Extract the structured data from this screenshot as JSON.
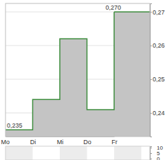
{
  "chart_data": [
    {
      "type": "line",
      "categories": [
        "Mo",
        "Di",
        "Mi",
        "Do",
        "Fr"
      ],
      "values": [
        0.235,
        0.244,
        0.262,
        0.241,
        0.27
      ],
      "color": "#3c8c3c",
      "line_style": "step",
      "ylim": [
        0.233,
        0.2725
      ],
      "yticks": [
        {
          "value": 0.24,
          "label": "0,24"
        },
        {
          "value": 0.25,
          "label": "0,25"
        },
        {
          "value": 0.26,
          "label": "0,26"
        },
        {
          "value": 0.27,
          "label": "0,27"
        }
      ],
      "grid": true,
      "annotations": [
        {
          "text": "0,235",
          "x": "Mo",
          "y": 0.235
        },
        {
          "text": "0,270",
          "x": "Fr",
          "y": 0.27
        }
      ]
    },
    {
      "type": "bar",
      "categories": [
        null,
        null,
        null,
        null,
        null
      ],
      "values": [
        0,
        0,
        0,
        0,
        0
      ],
      "color": "#9a9a9a",
      "ylim": [
        -1.25,
        11.25
      ],
      "yticks": [
        0,
        5,
        10
      ]
    }
  ]
}
